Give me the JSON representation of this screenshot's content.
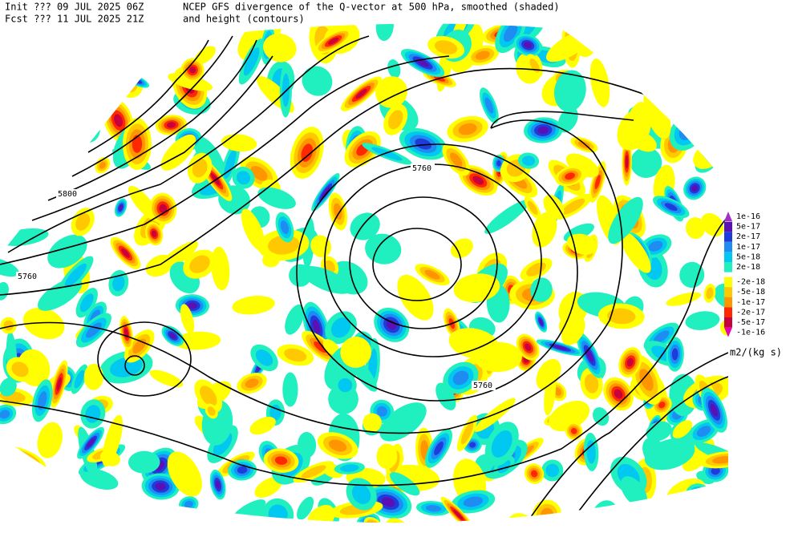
{
  "header": {
    "init": "Init  ??? 09 JUL 2025 06Z",
    "fcst": "Fcst ??? 11 JUL 2025 21Z",
    "title": "NCEP GFS divergence of the Q-vector at 500 hPa, smoothed (shaded)",
    "subtitle": "and height (contours)"
  },
  "contour_labels": [
    "5800",
    "5760",
    "5760",
    "5760"
  ],
  "colorbar": {
    "unit": "m2/(kg s)",
    "entries": [
      {
        "label": "1e-16",
        "color": "#a030c8"
      },
      {
        "label": "5e-17",
        "color": "#5a10b4"
      },
      {
        "label": "2e-17",
        "color": "#1e3cdc"
      },
      {
        "label": "1e-17",
        "color": "#1e8cf0"
      },
      {
        "label": "5e-18",
        "color": "#00c8f0"
      },
      {
        "label": "2e-18",
        "color": "#20f0c0"
      },
      {
        "label": "-2e-18",
        "color": "#ffff00"
      },
      {
        "label": "-5e-18",
        "color": "#ffc800"
      },
      {
        "label": "-1e-17",
        "color": "#ff9600"
      },
      {
        "label": "-2e-17",
        "color": "#ff2800"
      },
      {
        "label": "-5e-17",
        "color": "#c8003c"
      },
      {
        "label": "-1e-16",
        "color": "#e600b4"
      }
    ]
  }
}
